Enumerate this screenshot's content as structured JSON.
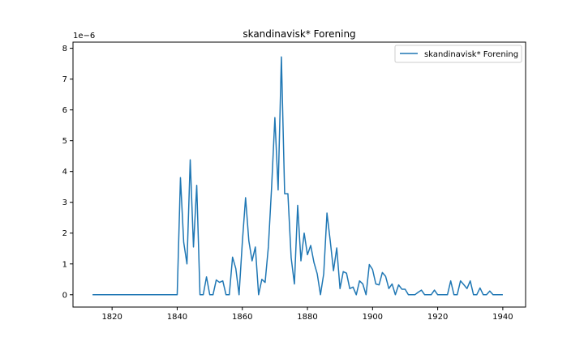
{
  "chart_data": {
    "type": "line",
    "title": "skandinavisk* Forening",
    "xlabel": "",
    "ylabel": "",
    "y_offset_label": "1e−6",
    "xlim": [
      1808,
      1947
    ],
    "ylim": [
      -0.4,
      8.2
    ],
    "x_ticks": [
      1820,
      1840,
      1860,
      1880,
      1900,
      1920,
      1940
    ],
    "y_ticks": [
      0,
      1,
      2,
      3,
      4,
      5,
      6,
      7,
      8
    ],
    "grid": false,
    "legend_position": "top-right",
    "line_color": "#1f77b4",
    "series": [
      {
        "name": "skandinavisk* Forening",
        "x": [
          1814,
          1815,
          1816,
          1817,
          1818,
          1819,
          1820,
          1821,
          1822,
          1823,
          1824,
          1825,
          1826,
          1827,
          1828,
          1829,
          1830,
          1831,
          1832,
          1833,
          1834,
          1835,
          1836,
          1837,
          1838,
          1839,
          1840,
          1841,
          1842,
          1843,
          1844,
          1845,
          1846,
          1847,
          1848,
          1849,
          1850,
          1851,
          1852,
          1853,
          1854,
          1855,
          1856,
          1857,
          1858,
          1859,
          1860,
          1861,
          1862,
          1863,
          1864,
          1865,
          1866,
          1867,
          1868,
          1869,
          1870,
          1871,
          1872,
          1873,
          1874,
          1875,
          1876,
          1877,
          1878,
          1879,
          1880,
          1881,
          1882,
          1883,
          1884,
          1885,
          1886,
          1887,
          1888,
          1889,
          1890,
          1891,
          1892,
          1893,
          1894,
          1895,
          1896,
          1897,
          1898,
          1899,
          1900,
          1901,
          1902,
          1903,
          1904,
          1905,
          1906,
          1907,
          1908,
          1909,
          1910,
          1911,
          1912,
          1913,
          1914,
          1915,
          1916,
          1917,
          1918,
          1919,
          1920,
          1921,
          1922,
          1923,
          1924,
          1925,
          1926,
          1927,
          1928,
          1929,
          1930,
          1931,
          1932,
          1933,
          1934,
          1935,
          1936,
          1937,
          1938,
          1939,
          1940
        ],
        "values": [
          0,
          0,
          0,
          0,
          0,
          0,
          0,
          0,
          0,
          0,
          0,
          0,
          0,
          0,
          0,
          0,
          0,
          0,
          0,
          0,
          0,
          0,
          0,
          0,
          0,
          0,
          0,
          3.8,
          1.7,
          1.0,
          4.38,
          1.55,
          3.55,
          0,
          0,
          0.58,
          0,
          0,
          0.48,
          0.4,
          0.45,
          0,
          0,
          1.22,
          0.85,
          0,
          1.7,
          3.15,
          1.75,
          1.1,
          1.55,
          0,
          0.5,
          0.4,
          1.55,
          3.5,
          5.75,
          3.4,
          7.72,
          3.28,
          3.28,
          1.2,
          0.35,
          2.9,
          1.1,
          2.0,
          1.3,
          1.6,
          1.05,
          0.68,
          0,
          0.68,
          2.65,
          1.75,
          0.78,
          1.52,
          0.2,
          0.75,
          0.7,
          0.2,
          0.25,
          0,
          0.45,
          0.35,
          0,
          0.98,
          0.82,
          0.35,
          0.32,
          0.72,
          0.6,
          0.2,
          0.35,
          0,
          0.32,
          0.18,
          0.18,
          0,
          0,
          0,
          0.08,
          0.15,
          0,
          0,
          0,
          0.15,
          0,
          0,
          0,
          0,
          0.45,
          0,
          0,
          0.45,
          0.33,
          0.2,
          0.45,
          0,
          0,
          0.22,
          0,
          0,
          0.12,
          0,
          0,
          0,
          0
        ]
      }
    ]
  }
}
